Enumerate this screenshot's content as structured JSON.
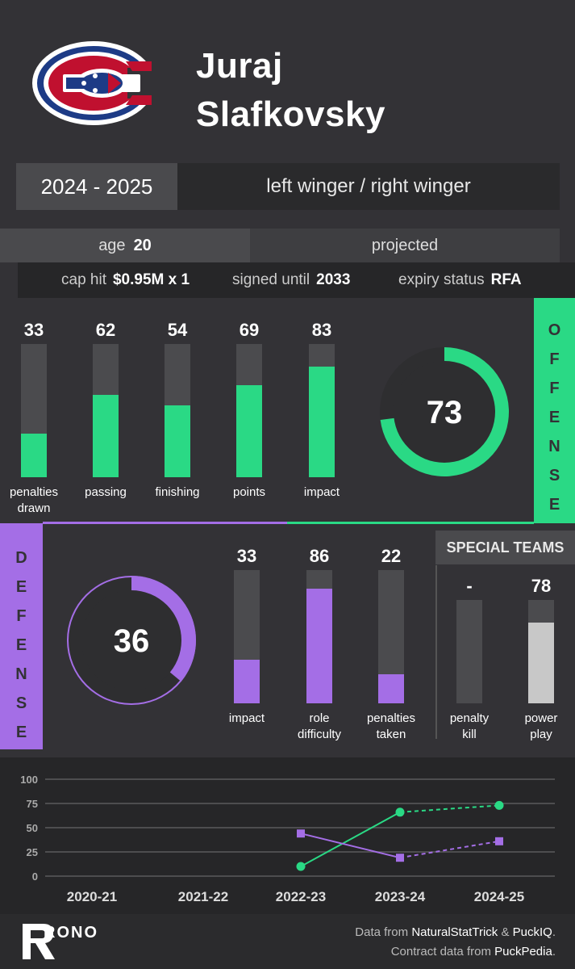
{
  "player": {
    "first_name": "Juraj",
    "last_name": "Slafkovsky"
  },
  "season": "2024 - 2025",
  "position": "left winger / right winger",
  "age_label": "age",
  "age": "20",
  "status": "projected",
  "contract": {
    "cap_hit_label": "cap hit",
    "cap_hit": "$0.95M x 1",
    "signed_label": "signed until",
    "signed": "2033",
    "expiry_label": "expiry status",
    "expiry": "RFA"
  },
  "offense": {
    "side_label": "OFFENSE",
    "overall": 73,
    "bars": [
      {
        "label1": "penalties",
        "label2": "drawn",
        "value": 33
      },
      {
        "label1": "passing",
        "label2": "",
        "value": 62
      },
      {
        "label1": "finishing",
        "label2": "",
        "value": 54
      },
      {
        "label1": "points",
        "label2": "",
        "value": 69
      },
      {
        "label1": "impact",
        "label2": "",
        "value": 83
      }
    ]
  },
  "defense": {
    "side_label": "DEFENSE",
    "overall": 36,
    "bars": [
      {
        "label1": "impact",
        "label2": "",
        "value": 33
      },
      {
        "label1": "role",
        "label2": "difficulty",
        "value": 86
      },
      {
        "label1": "penalties",
        "label2": "taken",
        "value": 22
      }
    ]
  },
  "special_teams": {
    "title": "SPECIAL TEAMS",
    "bars": [
      {
        "label1": "penalty",
        "label2": "kill",
        "value": null,
        "display": "-"
      },
      {
        "label1": "power",
        "label2": "play",
        "value": 78,
        "display": "78"
      }
    ]
  },
  "colors": {
    "offense": "#2ad985",
    "defense": "#a46ee6",
    "track": "#4b4b4e",
    "pp": "#c8c8c8",
    "ring_bg": "#2e2e30"
  },
  "chart_data": {
    "type": "line",
    "categories": [
      "2020-21",
      "2021-22",
      "2022-23",
      "2023-24",
      "2024-25"
    ],
    "y_ticks": [
      0,
      25,
      50,
      75,
      100
    ],
    "ylim": [
      0,
      100
    ],
    "series": [
      {
        "name": "offense",
        "marker": "circle",
        "values": [
          null,
          null,
          10,
          66,
          73
        ],
        "projected_from_index": 3
      },
      {
        "name": "defense",
        "marker": "square",
        "values": [
          null,
          null,
          44,
          19,
          36
        ],
        "projected_from_index": 3
      }
    ]
  },
  "footer": {
    "brand": "RONO",
    "credit1_pre": "Data from ",
    "credit1_a": "NaturalStatTrick",
    "credit1_mid": " & ",
    "credit1_b": "PuckIQ",
    "credit1_post": ".",
    "credit2_pre": "Contract data from ",
    "credit2_a": "PuckPedia",
    "credit2_post": "."
  }
}
